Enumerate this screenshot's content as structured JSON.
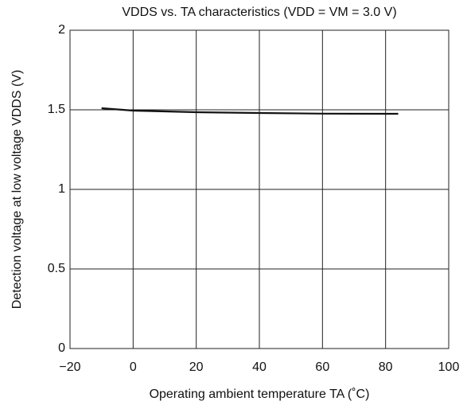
{
  "chart_data": {
    "type": "line",
    "title": "VDDS vs. TA characteristics (VDD = VM = 3.0 V)",
    "x_label": "Operating ambient temperature TA (˚C)",
    "y_label": "Detection voltage at low voltage VDDS (V)",
    "x": [
      -10,
      0,
      20,
      40,
      60,
      80,
      84
    ],
    "series": [
      {
        "name": "VDDS",
        "color": "#111111",
        "values": [
          1.51,
          1.495,
          1.485,
          1.48,
          1.476,
          1.475,
          1.475
        ]
      }
    ],
    "xlim": [
      -20,
      100
    ],
    "xticks": [
      {
        "value": -20,
        "label": "−20"
      },
      0,
      20,
      40,
      60,
      80,
      100
    ],
    "ylim": [
      0,
      2
    ],
    "yticks": [
      0,
      0.5,
      1,
      1.5,
      2
    ],
    "grid": true
  }
}
